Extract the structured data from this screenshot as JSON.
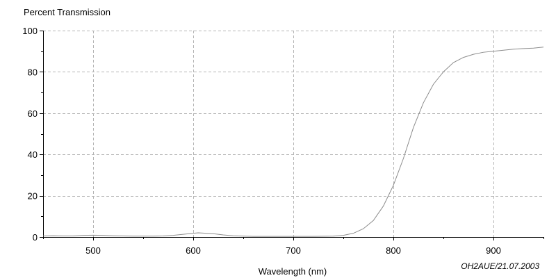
{
  "chart_data": {
    "type": "line",
    "title": "",
    "ylabel": "Percent Transmission",
    "xlabel": "Wavelength (nm)",
    "annotation": "OH2AUE/21.07.2003",
    "xlim": [
      450,
      950
    ],
    "ylim": [
      0,
      100
    ],
    "x_ticks": [
      500,
      600,
      700,
      800,
      900
    ],
    "y_ticks": [
      0,
      20,
      40,
      60,
      80,
      100
    ],
    "grid": true,
    "legend": "none",
    "colors": {
      "series": "#8c8c8c",
      "grid": "#b4b4b4",
      "axis": "#000000"
    },
    "series": [
      {
        "name": "",
        "x": [
          450,
          460,
          470,
          480,
          490,
          500,
          510,
          520,
          530,
          540,
          550,
          560,
          570,
          580,
          590,
          600,
          605,
          610,
          620,
          630,
          640,
          650,
          660,
          680,
          700,
          720,
          740,
          750,
          760,
          770,
          780,
          790,
          800,
          810,
          820,
          830,
          840,
          850,
          860,
          870,
          880,
          890,
          900,
          910,
          920,
          930,
          940,
          950
        ],
        "y": [
          0.5,
          0.6,
          0.5,
          0.5,
          0.8,
          0.9,
          0.8,
          0.6,
          0.5,
          0.4,
          0.4,
          0.4,
          0.5,
          0.8,
          1.3,
          1.8,
          2.0,
          1.9,
          1.6,
          1.0,
          0.6,
          0.4,
          0.3,
          0.3,
          0.3,
          0.3,
          0.4,
          0.8,
          1.8,
          4.0,
          8.0,
          15.0,
          25.0,
          38.0,
          53.0,
          65.0,
          74.0,
          80.0,
          84.5,
          87.0,
          88.5,
          89.5,
          90.0,
          90.5,
          91.0,
          91.3,
          91.5,
          92.0
        ]
      }
    ]
  }
}
